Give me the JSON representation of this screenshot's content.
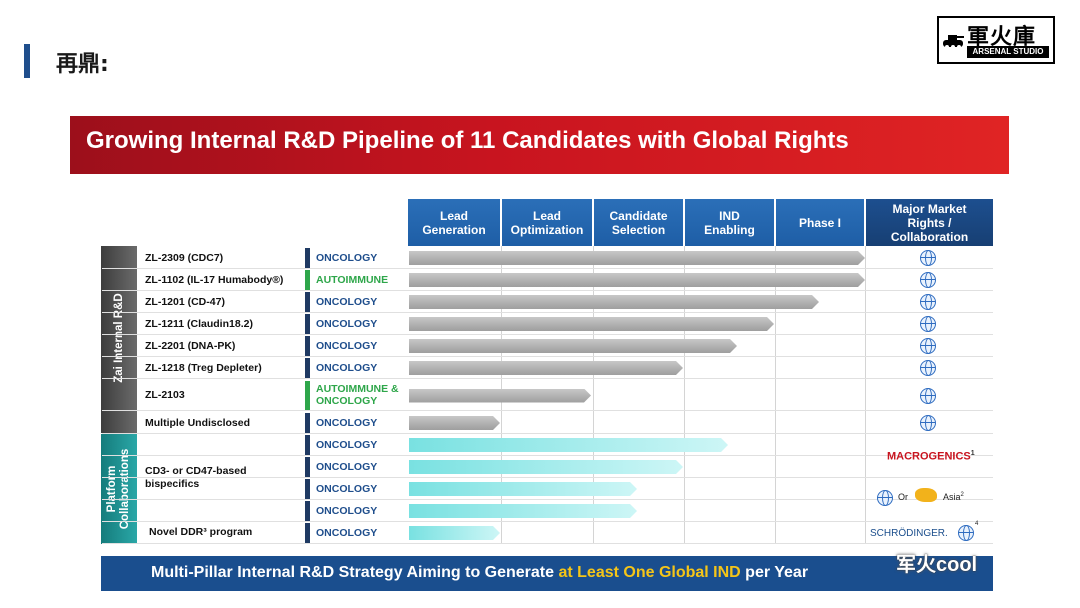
{
  "header": {
    "title": "再鼎:"
  },
  "logo": {
    "main": "軍火庫",
    "sub": "ARSENAL STUDIO"
  },
  "slide": {
    "title": "Growing Internal R&D Pipeline of 11 Candidates with Global Rights",
    "stages": [
      "Lead\nGeneration",
      "Lead\nOptimization",
      "Candidate\nSelection",
      "IND\nEnabling",
      "Phase I"
    ],
    "rights_header": "Major Market\nRights /\nCollaboration",
    "groups": {
      "internal": "Zai Internal R&D",
      "platform": "Platform\nCollaborations"
    },
    "internal_rows": [
      {
        "name": "ZL-2309 (CDC7)",
        "area": "ONCOLOGY",
        "area_type": "oncology",
        "progress": 1.0
      },
      {
        "name": "ZL-1102 (IL-17 Humabody®)",
        "area": "AUTOIMMUNE",
        "area_type": "autoimmune",
        "progress": 1.0
      },
      {
        "name": "ZL-1201 (CD-47)",
        "area": "ONCOLOGY",
        "area_type": "oncology",
        "progress": 0.9
      },
      {
        "name": "ZL-1211 (Claudin18.2)",
        "area": "ONCOLOGY",
        "area_type": "oncology",
        "progress": 0.8
      },
      {
        "name": "ZL-2201 (DNA-PK)",
        "area": "ONCOLOGY",
        "area_type": "oncology",
        "progress": 0.72
      },
      {
        "name": "ZL-1218 (Treg Depleter)",
        "area": "ONCOLOGY",
        "area_type": "oncology",
        "progress": 0.6
      },
      {
        "name": "ZL-2103",
        "area": "AUTOIMMUNE &\nONCOLOGY",
        "area_type": "autoimmune",
        "progress": 0.4
      },
      {
        "name": "Multiple Undisclosed",
        "area": "ONCOLOGY",
        "area_type": "oncology",
        "progress": 0.2
      }
    ],
    "platform_name_1": "CD3- or CD47-based\nbispecifics",
    "platform_name_2": "Novel DDR³ program",
    "platform_rows": [
      {
        "area": "ONCOLOGY",
        "progress": 0.7
      },
      {
        "area": "ONCOLOGY",
        "progress": 0.6
      },
      {
        "area": "ONCOLOGY",
        "progress": 0.5
      },
      {
        "area": "ONCOLOGY",
        "progress": 0.5
      },
      {
        "area": "ONCOLOGY",
        "progress": 0.2
      }
    ],
    "partners": {
      "macrogenics": "MACROGENICS",
      "macrogenics_sup": "1",
      "or_text": "Or",
      "asia_text": "Asia",
      "asia_sup": "2",
      "schrodinger": "SCHRÖDINGER.",
      "schrodinger_sup": "4"
    },
    "footer": {
      "text_before": "Multi-Pillar Internal R&D Strategy Aiming to Generate ",
      "highlight": "at Least One Global IND",
      "text_after": " per Year"
    }
  },
  "watermark": "军火cool",
  "colors": {
    "banner_red": "#c8141f",
    "stage_blue": "#1e5ea6",
    "footer_navy": "#1a4e8e",
    "oncology_navy": "#1f3a63",
    "autoimmune_green": "#2ea64a",
    "highlight_yellow": "#f5c518",
    "bar_gray": "#a9a9a9",
    "bar_cyan": "#79e1e1"
  }
}
